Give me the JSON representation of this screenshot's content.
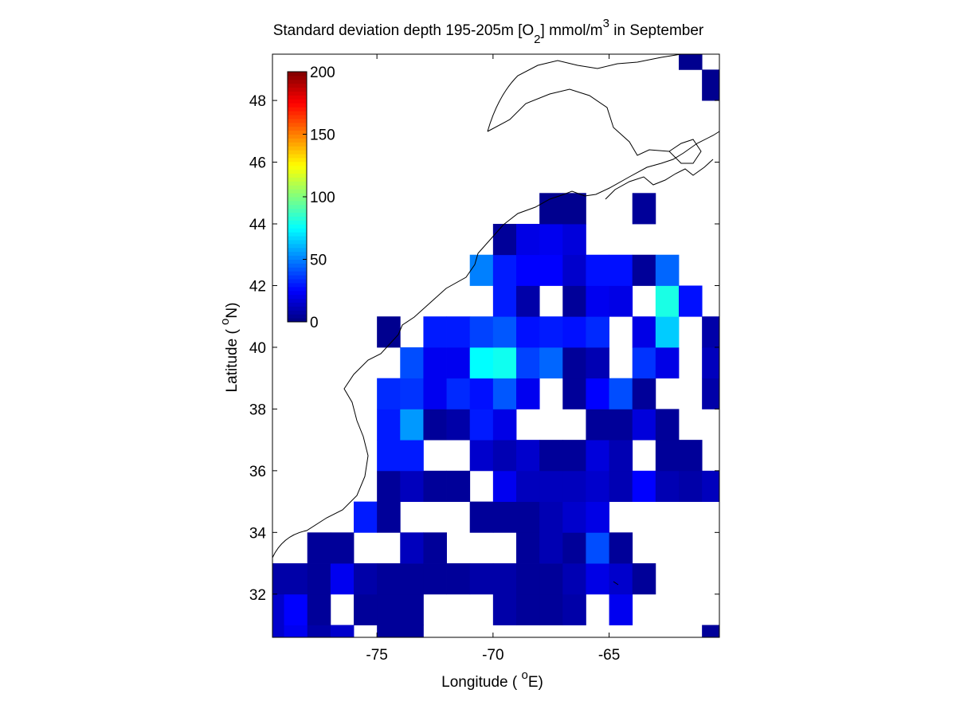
{
  "chart_data": {
    "type": "heatmap",
    "title_parts": [
      "Standard deviation depth 195-205m [O",
      "2",
      "] mmol/m",
      "3",
      " in September"
    ],
    "xlabel_parts": [
      "Longitude ( ",
      "o",
      "E)"
    ],
    "ylabel_parts": [
      "Latitude ( ",
      "o",
      "N)"
    ],
    "colormap": "jet",
    "clim": [
      0,
      200
    ],
    "cticks": [
      0,
      50,
      100,
      150,
      200
    ],
    "xlim": [
      -79.5,
      -60.25
    ],
    "ylim": [
      30.6,
      49.5
    ],
    "xticks": [
      -75,
      -70,
      -65
    ],
    "yticks": [
      32,
      34,
      36,
      38,
      40,
      42,
      44,
      46,
      48
    ],
    "x_edges": [
      -79.5,
      -79,
      -78,
      -77,
      -76,
      -75,
      -74,
      -73,
      -72,
      -71,
      -70,
      -69,
      -68,
      -67,
      -66,
      -65,
      -64,
      -63,
      -62,
      -61,
      -60.25
    ],
    "y_edges": [
      30.6,
      31,
      32,
      33,
      34,
      35,
      36,
      37,
      38,
      39,
      40,
      41,
      42,
      43,
      44,
      45,
      46,
      47,
      48,
      49,
      49.5
    ],
    "values": [
      [
        15,
        22,
        8,
        15,
        null,
        5,
        5,
        null,
        null,
        null,
        null,
        null,
        null,
        null,
        null,
        null,
        null,
        null,
        null,
        5
      ],
      [
        15,
        25,
        5,
        null,
        5,
        5,
        5,
        null,
        null,
        null,
        8,
        5,
        5,
        8,
        null,
        22,
        null,
        null,
        null,
        null
      ],
      [
        8,
        8,
        5,
        22,
        8,
        5,
        5,
        5,
        5,
        8,
        8,
        5,
        5,
        10,
        20,
        15,
        5,
        null,
        null,
        null
      ],
      [
        null,
        null,
        5,
        5,
        null,
        null,
        12,
        5,
        null,
        null,
        null,
        5,
        10,
        5,
        40,
        5,
        null,
        null,
        null,
        null
      ],
      [
        null,
        null,
        null,
        null,
        30,
        5,
        null,
        null,
        null,
        5,
        5,
        5,
        10,
        15,
        20,
        null,
        null,
        null,
        null,
        null
      ],
      [
        null,
        null,
        null,
        null,
        null,
        5,
        12,
        5,
        5,
        null,
        22,
        12,
        12,
        12,
        15,
        10,
        25,
        10,
        8,
        12
      ],
      [
        null,
        null,
        null,
        null,
        null,
        30,
        30,
        null,
        null,
        15,
        10,
        15,
        5,
        5,
        18,
        10,
        null,
        5,
        5,
        null
      ],
      [
        null,
        null,
        null,
        null,
        null,
        30,
        55,
        5,
        8,
        30,
        20,
        null,
        null,
        null,
        5,
        5,
        18,
        5,
        null,
        null
      ],
      [
        null,
        null,
        null,
        null,
        null,
        33,
        35,
        22,
        33,
        28,
        42,
        22,
        null,
        5,
        25,
        40,
        5,
        null,
        null,
        8
      ],
      [
        null,
        null,
        null,
        null,
        null,
        null,
        40,
        22,
        22,
        75,
        78,
        38,
        45,
        5,
        10,
        null,
        35,
        20,
        null,
        12
      ],
      [
        null,
        null,
        null,
        null,
        null,
        3,
        null,
        30,
        30,
        38,
        42,
        28,
        30,
        28,
        33,
        null,
        20,
        65,
        null,
        8
      ],
      [
        null,
        null,
        null,
        null,
        null,
        null,
        null,
        null,
        null,
        null,
        30,
        8,
        null,
        5,
        22,
        20,
        null,
        80,
        28,
        null
      ],
      [
        null,
        null,
        null,
        null,
        null,
        null,
        null,
        null,
        null,
        50,
        30,
        25,
        25,
        15,
        28,
        28,
        5,
        45,
        null,
        null
      ],
      [
        null,
        null,
        null,
        null,
        null,
        null,
        null,
        null,
        null,
        null,
        5,
        20,
        22,
        18,
        null,
        null,
        null,
        null,
        null,
        null
      ],
      [
        null,
        null,
        null,
        null,
        null,
        null,
        null,
        null,
        null,
        null,
        null,
        null,
        3,
        3,
        null,
        null,
        5,
        null,
        null,
        null
      ],
      [
        null,
        null,
        null,
        null,
        null,
        null,
        null,
        null,
        null,
        null,
        null,
        null,
        null,
        null,
        null,
        null,
        null,
        null,
        null,
        null
      ],
      [
        null,
        null,
        null,
        null,
        null,
        null,
        null,
        null,
        null,
        null,
        null,
        null,
        null,
        null,
        null,
        null,
        null,
        null,
        null,
        null
      ],
      [
        null,
        null,
        null,
        null,
        null,
        null,
        null,
        null,
        null,
        null,
        null,
        null,
        null,
        null,
        null,
        null,
        null,
        null,
        null,
        null
      ],
      [
        null,
        null,
        null,
        null,
        null,
        null,
        null,
        null,
        null,
        null,
        null,
        null,
        null,
        null,
        null,
        null,
        null,
        null,
        null,
        3
      ],
      [
        null,
        null,
        null,
        null,
        null,
        null,
        null,
        null,
        null,
        null,
        null,
        null,
        null,
        null,
        null,
        null,
        null,
        null,
        3,
        null
      ]
    ]
  }
}
